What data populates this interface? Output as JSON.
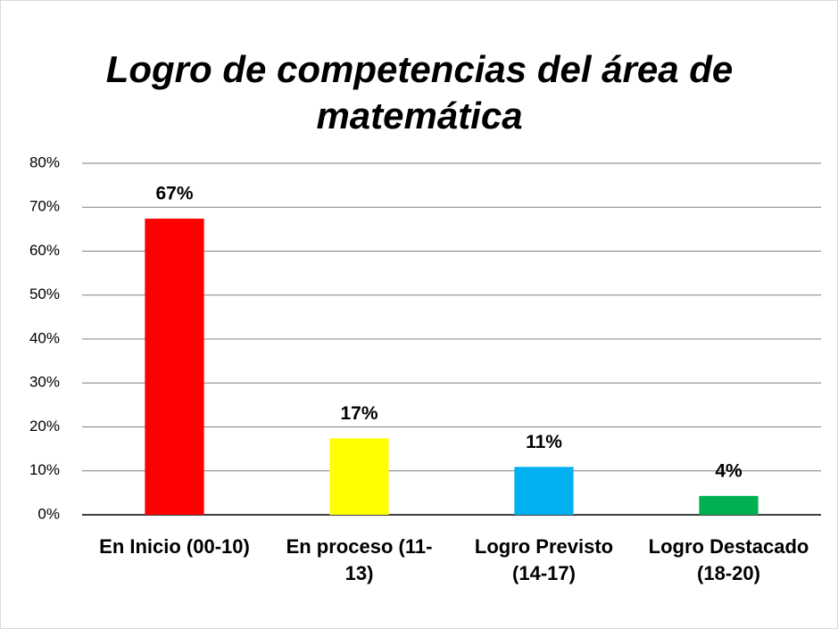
{
  "chart_data": {
    "type": "bar",
    "title": "Logro de competencias del área de matemática",
    "categories": [
      "En Inicio (00-10)",
      "En proceso (11-13)",
      "Logro Previsto (14-17)",
      "Logro Destacado (18-20)"
    ],
    "values": [
      67.4,
      17.4,
      10.9,
      4.3
    ],
    "value_labels": [
      "67%",
      "17%",
      "11%",
      "4%"
    ],
    "colors": [
      "#ff0000",
      "#ffff00",
      "#00b0f0",
      "#00b050"
    ],
    "ylim": [
      0,
      80
    ],
    "yticks": [
      {
        "value": 0,
        "label": "0%"
      },
      {
        "value": 10,
        "label": "10%"
      },
      {
        "value": 20,
        "label": "20%"
      },
      {
        "value": 30,
        "label": "30%"
      },
      {
        "value": 40,
        "label": "40%"
      },
      {
        "value": 50,
        "label": "50%"
      },
      {
        "value": 60,
        "label": "60%"
      },
      {
        "value": 70,
        "label": "70%"
      },
      {
        "value": 80,
        "label": "80%"
      }
    ],
    "grid": true
  }
}
